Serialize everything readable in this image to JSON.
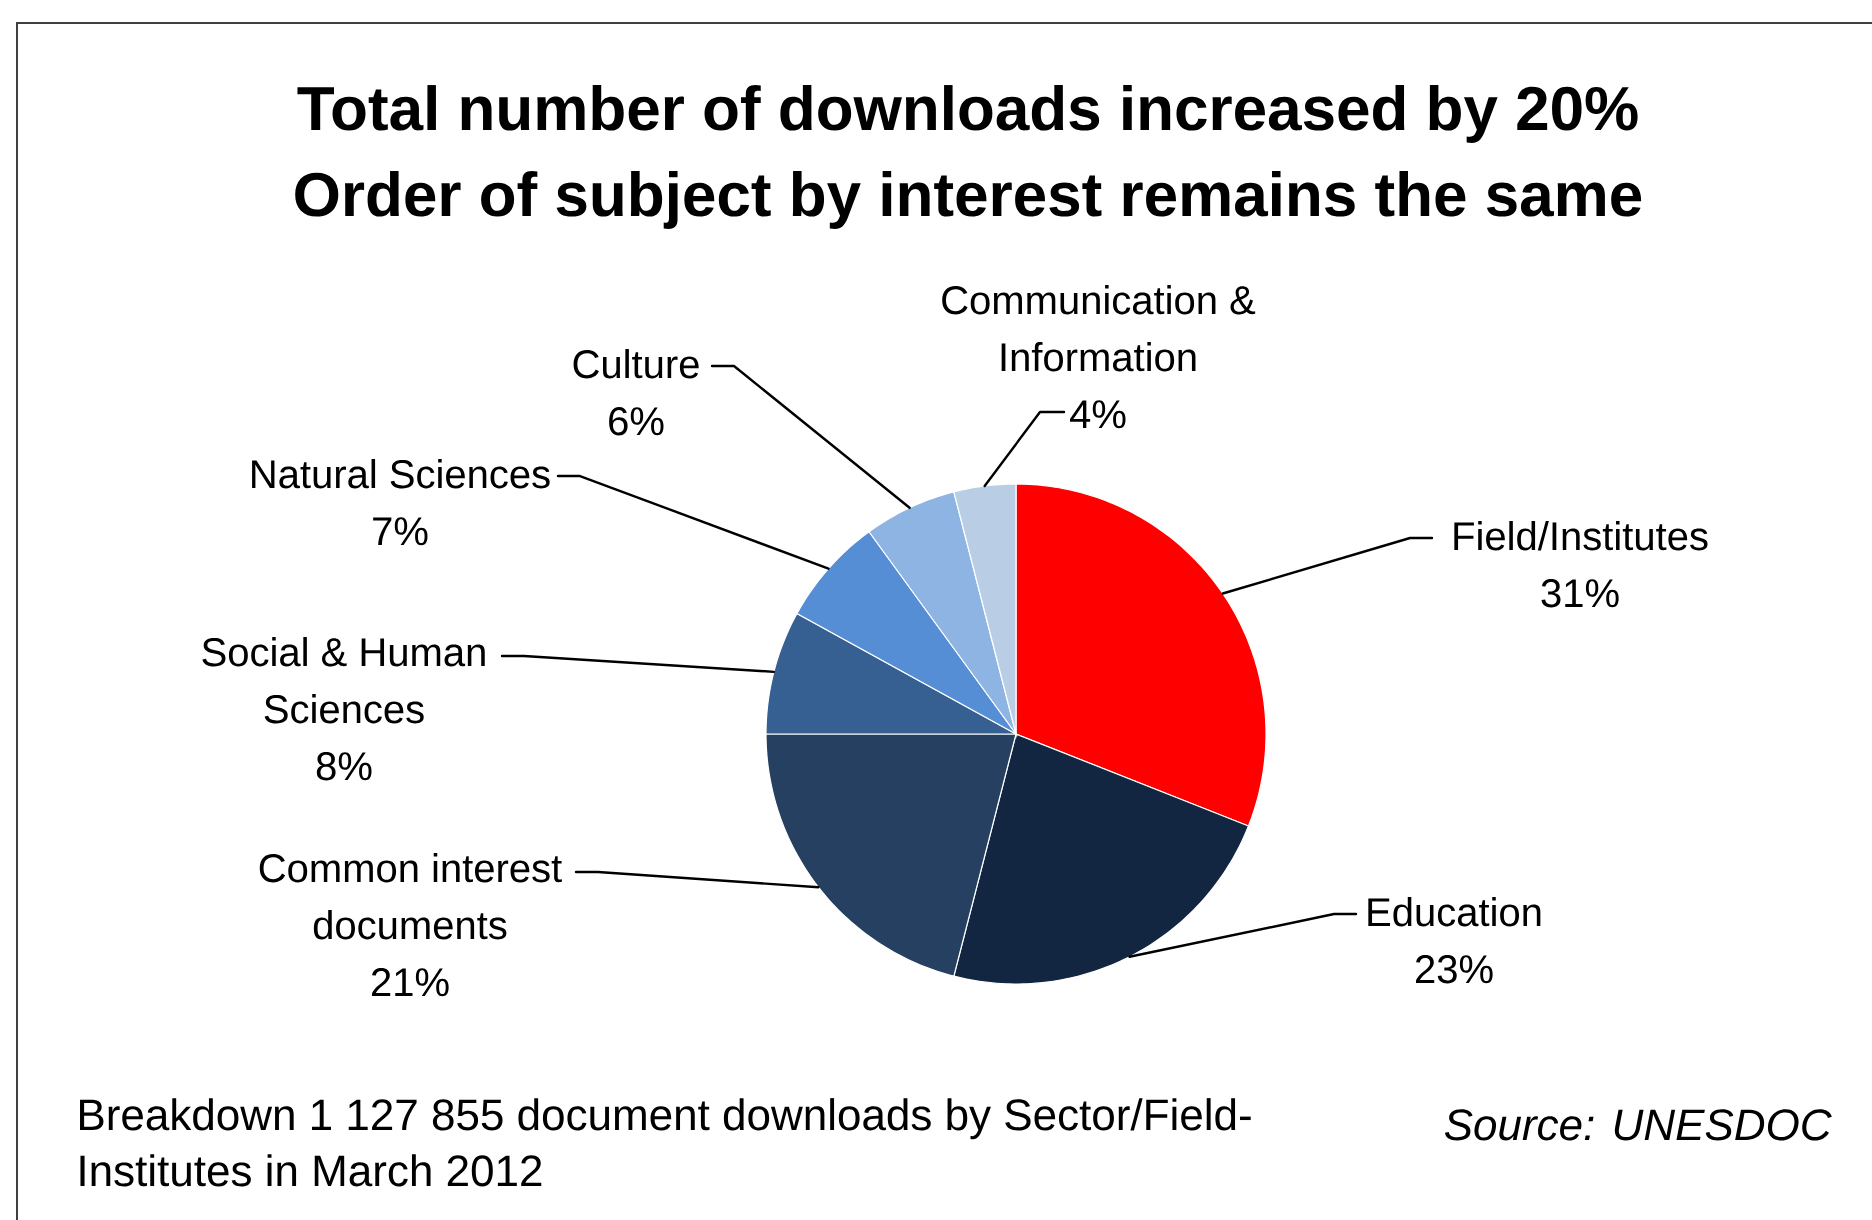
{
  "chart_data": {
    "type": "pie",
    "title": "Total number of downloads increased by 20%",
    "subtitle": "Order of subject by interest remains the same",
    "categories": [
      "Field/Institutes",
      "Education",
      "Common interest documents",
      "Social & Human Sciences",
      "Natural Sciences",
      "Culture",
      "Communication & Information"
    ],
    "values": [
      31,
      23,
      21,
      8,
      7,
      6,
      4
    ],
    "value_labels": [
      "31%",
      "23%",
      "21%",
      "8%",
      "7%",
      "6%",
      "4%"
    ],
    "colors": [
      "#ff0000",
      "#132641",
      "#254061",
      "#376092",
      "#558ed5",
      "#8db4e2",
      "#b9cde5"
    ],
    "annotations": [
      "Breakdown 1 127 855 document downloads by Sector/Field-Institutes in March 2012",
      "Source: UNESDOC"
    ]
  }
}
